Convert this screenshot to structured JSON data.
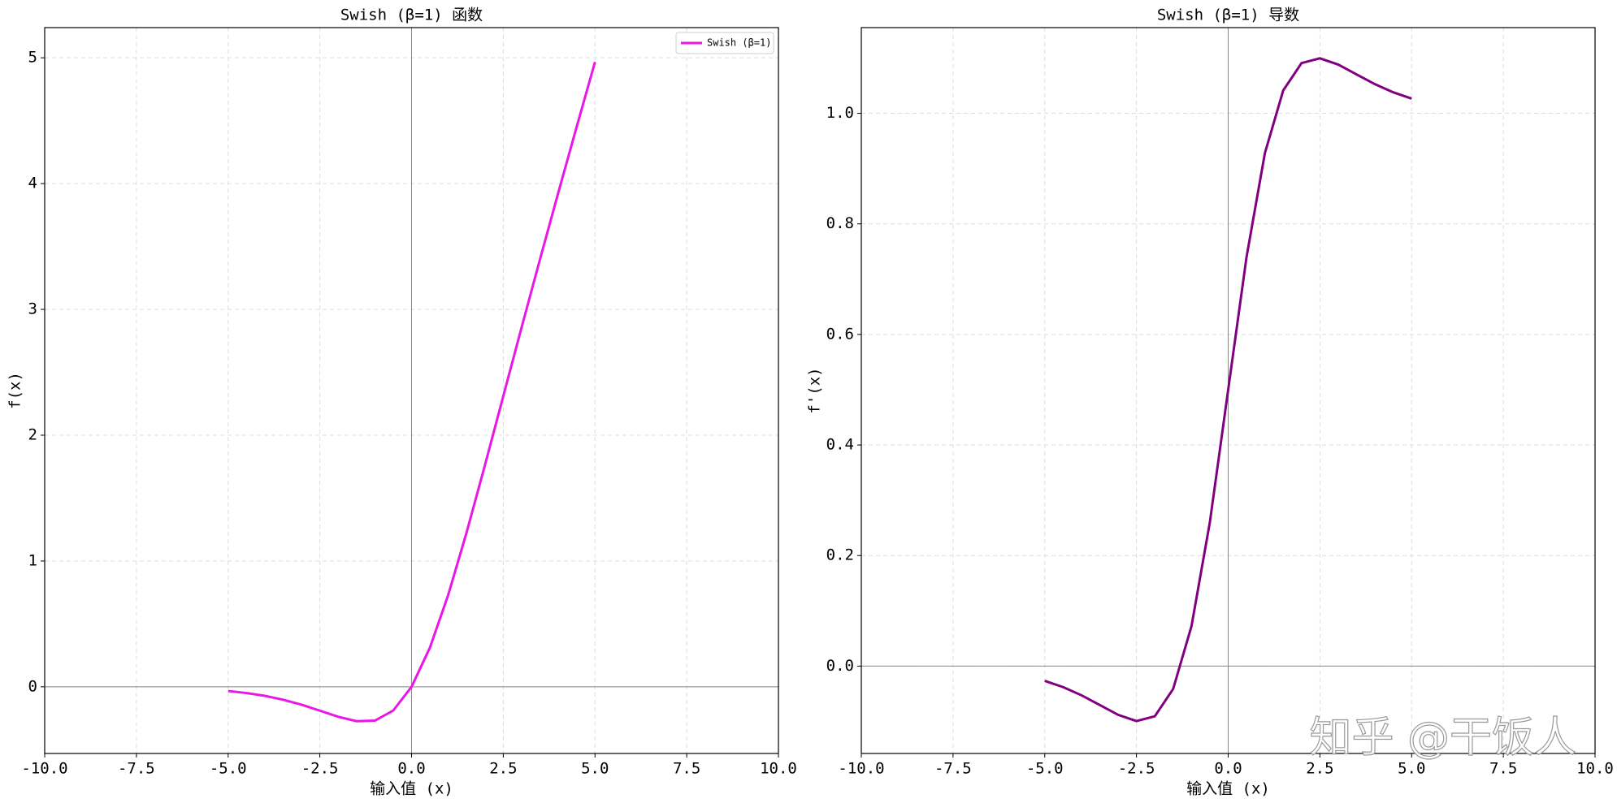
{
  "chart_data": [
    {
      "type": "line",
      "title": "Swish (β=1) 函数",
      "xlabel": "输入值 (x)",
      "ylabel": "f(x)",
      "x": [
        -5,
        -4.5,
        -4,
        -3.5,
        -3,
        -2.5,
        -2,
        -1.5,
        -1,
        -0.5,
        0,
        0.5,
        1,
        1.5,
        2,
        2.5,
        3,
        3.5,
        4,
        4.5,
        5
      ],
      "series": [
        {
          "name": "Swish (β=1)",
          "color": "#e817e6",
          "values": [
            -0.0335,
            -0.0495,
            -0.0719,
            -0.1026,
            -0.1423,
            -0.1896,
            -0.2384,
            -0.2736,
            -0.2689,
            -0.1888,
            0,
            0.3112,
            0.7311,
            1.2264,
            1.7616,
            2.3104,
            2.8577,
            3.3974,
            3.9281,
            4.4505,
            4.9665
          ]
        }
      ],
      "xlim": [
        -10,
        10
      ],
      "xticks": [
        {
          "value": -10,
          "label": "-10.0"
        },
        -7.5,
        {
          "value": -5,
          "label": "-5.0"
        },
        -2.5,
        {
          "value": 0,
          "label": "0.0"
        },
        2.5,
        {
          "value": 5,
          "label": "5.0"
        },
        7.5,
        {
          "value": 10,
          "label": "10.0"
        }
      ],
      "ylim": [
        -0.53,
        5.24
      ],
      "yticks": [
        0,
        1,
        2,
        3,
        4,
        5
      ],
      "grid": true,
      "legend": "upper right"
    },
    {
      "type": "line",
      "title": "Swish (β=1) 导数",
      "xlabel": "输入值 (x)",
      "ylabel": "f'(x)",
      "x": [
        -5,
        -4.5,
        -4,
        -3.5,
        -3,
        -2.5,
        -2,
        -1.5,
        -1,
        -0.5,
        0,
        0.5,
        1,
        1.5,
        2,
        2.5,
        3,
        3.5,
        4,
        4.5,
        5
      ],
      "series": [
        {
          "color": "#800080",
          "values": [
            -0.0266,
            -0.0379,
            -0.0527,
            -0.0703,
            -0.0881,
            -0.0994,
            -0.0908,
            -0.0413,
            0.0723,
            0.26,
            0.5,
            0.74,
            0.9277,
            1.0413,
            1.0908,
            1.0994,
            1.0881,
            1.0703,
            1.0527,
            1.0379,
            1.0266
          ]
        }
      ],
      "xlim": [
        -10,
        10
      ],
      "xticks": [
        {
          "value": -10,
          "label": "-10.0"
        },
        -7.5,
        {
          "value": -5,
          "label": "-5.0"
        },
        -2.5,
        {
          "value": 0,
          "label": "0.0"
        },
        2.5,
        {
          "value": 5,
          "label": "5.0"
        },
        7.5,
        {
          "value": 10,
          "label": "10.0"
        }
      ],
      "ylim": [
        -0.158,
        1.155
      ],
      "yticks": [
        {
          "value": 0,
          "label": "0.0"
        },
        0.2,
        0.4,
        0.6,
        0.8,
        {
          "value": 1,
          "label": "1.0"
        }
      ],
      "grid": true
    }
  ],
  "watermark": "知乎 @干饭人"
}
